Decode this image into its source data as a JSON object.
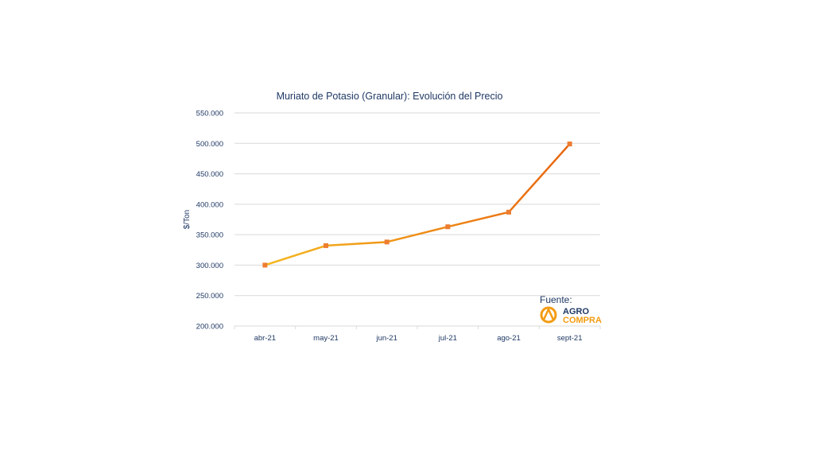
{
  "chart_data": {
    "type": "line",
    "title": "Muriato de Potasio (Granular): Evolución del Precio",
    "xlabel": "",
    "ylabel": "$/Ton",
    "categories": [
      "abr-21",
      "may-21",
      "jun-21",
      "jul-21",
      "ago-21",
      "sept-21"
    ],
    "series": [
      {
        "values": [
          300000,
          332000,
          338000,
          363000,
          387000,
          499000
        ]
      }
    ],
    "ylim": [
      200000,
      550000
    ],
    "yticks": [
      200000,
      250000,
      300000,
      350000,
      400000,
      450000,
      500000,
      550000
    ],
    "ytick_labels": [
      "200.000",
      "250.000",
      "300.000",
      "350.000",
      "400.000",
      "450.000",
      "500.000",
      "550.000"
    ],
    "grid": true,
    "colors": {
      "line_start": "#f5b81f",
      "line_end": "#e8650f",
      "marker": "#ed7d31",
      "grid": "#d9d9d9",
      "text": "#1f3864"
    }
  },
  "source": {
    "label": "Fuente:",
    "logo_line1": "AGRO",
    "logo_line2": "COMPRA",
    "logo_colors": {
      "ring": "#f39c12",
      "text_dark": "#1f3864",
      "text_accent": "#f39c12"
    }
  }
}
